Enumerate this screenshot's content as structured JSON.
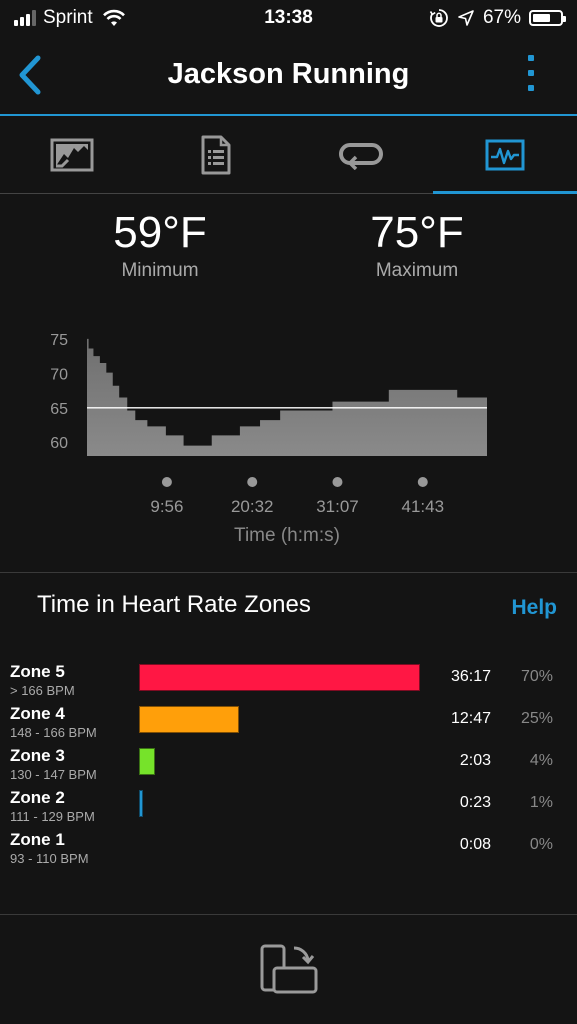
{
  "status_bar": {
    "carrier": "Sprint",
    "time": "13:38",
    "battery_percent": "67%",
    "battery_level": 0.67
  },
  "header": {
    "title": "Jackson Running"
  },
  "tabs": [
    {
      "icon": "map-icon",
      "active": false
    },
    {
      "icon": "document-list-icon",
      "active": false
    },
    {
      "icon": "repeat-laps-icon",
      "active": false
    },
    {
      "icon": "activity-chart-icon",
      "active": true
    }
  ],
  "temperature": {
    "min_value": "59°F",
    "min_label": "Minimum",
    "max_value": "75°F",
    "max_label": "Maximum"
  },
  "chart_data": {
    "type": "area",
    "y_ticks": [
      "75",
      "70",
      "65",
      "60"
    ],
    "ylim": [
      58,
      76
    ],
    "x_ticks": [
      "9:56",
      "20:32",
      "31:07",
      "41:43"
    ],
    "xlabel": "Time (h:m:s)",
    "average_line": 65,
    "x_minutes": [
      0,
      0.2,
      0.8,
      1.6,
      2.4,
      3.2,
      4.0,
      5.0,
      6.0,
      7.5,
      9.8,
      12.0,
      15.5,
      19.0,
      21.5,
      24.0,
      27.0,
      30.5,
      33.5,
      37.5,
      40.5,
      46.0,
      48.0,
      49.7
    ],
    "y": [
      75,
      73.6,
      72.5,
      71.5,
      70.1,
      68.2,
      66.5,
      64.6,
      63.2,
      62.3,
      61.0,
      59.5,
      61.0,
      62.3,
      63.2,
      64.6,
      64.6,
      65.9,
      65.9,
      67.6,
      67.6,
      66.5,
      66.5,
      66.5
    ],
    "x_total_minutes": 49.7,
    "colors": {
      "area": "#8a8a8a",
      "area_top": "#6f6f6f",
      "line": "#ffffff"
    }
  },
  "heart_rate": {
    "title": "Time in Heart Rate Zones",
    "help_label": "Help",
    "zones": [
      {
        "name": "Zone 5",
        "range": "> 166 BPM",
        "time": "36:17",
        "percent": "70%",
        "fraction": 0.7,
        "color": "#ff1744"
      },
      {
        "name": "Zone 4",
        "range": "148 - 166 BPM",
        "time": "12:47",
        "percent": "25%",
        "fraction": 0.25,
        "color": "#ff9f0a"
      },
      {
        "name": "Zone 3",
        "range": "130 - 147 BPM",
        "time": "2:03",
        "percent": "4%",
        "fraction": 0.04,
        "color": "#76e32a"
      },
      {
        "name": "Zone 2",
        "range": "111 - 129 BPM",
        "time": "0:23",
        "percent": "1%",
        "fraction": 0.01,
        "color": "#2196d3"
      },
      {
        "name": "Zone 1",
        "range": "93 - 110 BPM",
        "time": "0:08",
        "percent": "0%",
        "fraction": 0.0,
        "color": "#888888"
      }
    ]
  },
  "bottom": {
    "icon": "rotate-device-icon"
  }
}
